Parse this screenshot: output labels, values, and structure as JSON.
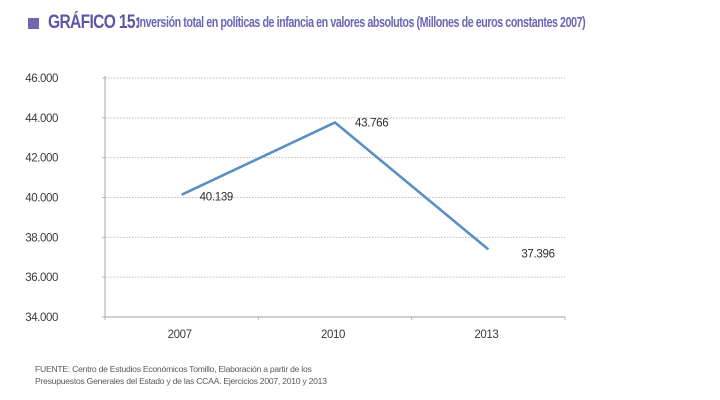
{
  "title": {
    "prefix": "GRÁFICO 15:",
    "text": "Inversión total en políticas de infancia en valores absolutos  (Millones de euros constantes 2007)",
    "accent_color": "#6f68b0"
  },
  "chart_data": {
    "type": "line",
    "title": "Inversión total en políticas de infancia en valores absolutos (Millones de euros constantes 2007)",
    "xlabel": "",
    "ylabel": "",
    "categories": [
      "2007",
      "2010",
      "2013"
    ],
    "series": [
      {
        "name": "Inversión total",
        "values": [
          40139,
          43766,
          37396
        ],
        "labels": [
          "40.139",
          "43.766",
          "37.396"
        ],
        "color": "#5b8fc4"
      }
    ],
    "ylim": [
      34000,
      46000
    ],
    "yticks": [
      34000,
      36000,
      38000,
      40000,
      42000,
      44000,
      46000
    ],
    "ytick_labels": [
      "34.000",
      "36.000",
      "38.000",
      "40.000",
      "42.000",
      "44.000",
      "46.000"
    ],
    "grid": true,
    "legend": "none"
  },
  "source": {
    "line1": "FUENTE: Centro de Estudios Económicos Tomillo, Elaboración a partir de los",
    "line2": "Presupuestos Generales del Estado y de las CCAA. Ejercicios 2007, 2010 y 2013"
  }
}
